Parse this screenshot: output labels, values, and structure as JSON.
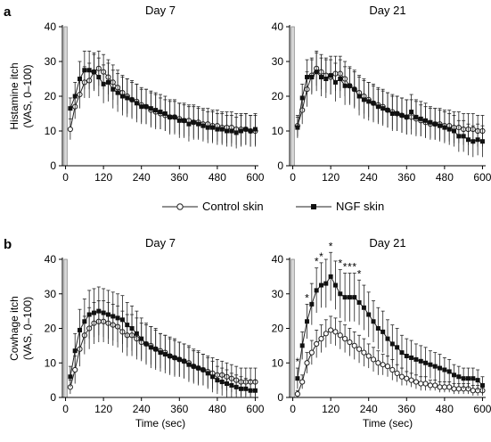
{
  "colors": {
    "axis": "#000000",
    "series_stroke": "#222222",
    "bar_fill": "#d9d9d9",
    "bar_stroke": "#888888",
    "open_fill": "#ffffff",
    "filled_fill": "#111111"
  },
  "legend": {
    "control_label": "Control skin",
    "ngf_label": "NGF skin",
    "control_marker": "open-circle",
    "ngf_marker": "filled-square",
    "placement": "between-rows-center"
  },
  "chart_data": [
    {
      "type": "line",
      "panel_letter": "a",
      "title": "Day 7",
      "xlabel": "",
      "ylabel_line1": "Histamine itch",
      "ylabel_line2": "(VAS, 0–100)",
      "xlim": [
        -10,
        610
      ],
      "ylim": [
        0,
        40
      ],
      "xticks": [
        0,
        120,
        240,
        360,
        480,
        600
      ],
      "yticks": [
        0,
        10,
        20,
        30,
        40
      ],
      "grid": false,
      "stimulus_bar": {
        "x_start": -5,
        "x_end": 5,
        "y_top": 40
      },
      "x": [
        15,
        30,
        45,
        60,
        75,
        90,
        105,
        120,
        135,
        150,
        165,
        180,
        195,
        210,
        225,
        240,
        255,
        270,
        285,
        300,
        315,
        330,
        345,
        360,
        375,
        390,
        405,
        420,
        435,
        450,
        465,
        480,
        495,
        510,
        525,
        540,
        555,
        570,
        585,
        600
      ],
      "series": [
        {
          "name": "Control skin",
          "marker": "open-circle",
          "values": [
            10.5,
            17,
            20.5,
            24,
            24.5,
            27,
            28,
            27,
            25.5,
            24,
            22.5,
            21,
            20,
            19,
            18.5,
            17.5,
            17,
            16,
            15.5,
            15,
            14.5,
            14,
            14,
            13.5,
            13,
            13,
            12.5,
            12.5,
            12,
            12,
            11.5,
            11.5,
            11,
            11,
            11,
            10.5,
            10.5,
            10.5,
            10,
            10
          ],
          "errors": [
            3,
            3.5,
            4,
            4.5,
            5,
            5,
            5,
            5,
            5,
            5,
            5,
            5,
            5,
            5,
            5,
            5,
            5,
            5,
            5,
            4.5,
            4.5,
            4.5,
            4.5,
            4.5,
            4.5,
            4.5,
            4.5,
            4.5,
            4.5,
            4.5,
            4.5,
            4.5,
            4.5,
            4.5,
            4.5,
            4.5,
            4.5,
            4.5,
            4.5,
            4.5
          ]
        },
        {
          "name": "NGF skin",
          "marker": "filled-square",
          "values": [
            16.5,
            20,
            25,
            27.5,
            27.5,
            27,
            25.5,
            23.5,
            24,
            22,
            21,
            20,
            19.5,
            19,
            18,
            17,
            17,
            16.5,
            16,
            15.5,
            15,
            14,
            14,
            13,
            13,
            12,
            12.5,
            12,
            11.5,
            11,
            11,
            10.5,
            10.5,
            10,
            10,
            9.5,
            10,
            10.5,
            10,
            10.5
          ],
          "errors": [
            3,
            4,
            5,
            5.5,
            5.5,
            5.5,
            5.5,
            5.5,
            5.5,
            5.5,
            5.5,
            5.5,
            5.5,
            5.5,
            5.5,
            5,
            5,
            5,
            5,
            5,
            5,
            5,
            5,
            5,
            5,
            5,
            5,
            4.5,
            4.5,
            4.5,
            4.5,
            4.5,
            4.5,
            4.5,
            4.5,
            4.5,
            4.5,
            4.5,
            4.5,
            4.5
          ]
        }
      ],
      "asterisks": []
    },
    {
      "type": "line",
      "panel_letter": "",
      "title": "Day 21",
      "xlabel": "",
      "ylabel_line1": "",
      "ylabel_line2": "",
      "xlim": [
        -10,
        610
      ],
      "ylim": [
        0,
        40
      ],
      "xticks": [
        0,
        120,
        240,
        360,
        480,
        600
      ],
      "yticks": [
        0,
        10,
        20,
        30,
        40
      ],
      "grid": false,
      "stimulus_bar": {
        "x_start": -5,
        "x_end": 5,
        "y_top": 40
      },
      "x": [
        15,
        30,
        45,
        60,
        75,
        90,
        105,
        120,
        135,
        150,
        165,
        180,
        195,
        210,
        225,
        240,
        255,
        270,
        285,
        300,
        315,
        330,
        345,
        360,
        375,
        390,
        405,
        420,
        435,
        450,
        465,
        480,
        495,
        510,
        525,
        540,
        555,
        570,
        585,
        600
      ],
      "series": [
        {
          "name": "Control skin",
          "marker": "open-circle",
          "values": [
            11.5,
            16,
            22,
            26,
            28,
            27,
            26,
            25.5,
            26.5,
            26.5,
            25,
            23,
            22,
            21,
            20,
            19,
            18,
            17.5,
            17,
            16,
            15.5,
            15,
            14.5,
            14,
            14,
            13.5,
            13,
            12.5,
            12,
            12,
            12,
            11.5,
            11.5,
            11,
            11,
            10.5,
            10.5,
            10.5,
            10,
            10
          ],
          "errors": [
            3,
            4,
            5,
            5,
            5,
            5,
            5,
            5,
            5,
            5,
            5,
            5,
            5,
            5,
            5,
            5,
            5,
            5,
            5,
            5,
            5,
            5,
            5,
            5,
            5,
            5,
            4.5,
            4.5,
            4.5,
            4.5,
            4.5,
            4.5,
            4.5,
            4.5,
            4.5,
            4.5,
            4.5,
            4.5,
            4.5,
            4.5
          ]
        },
        {
          "name": "NGF skin",
          "marker": "filled-square",
          "values": [
            11,
            19.5,
            25.5,
            25.5,
            27,
            25.5,
            25,
            26,
            24,
            25,
            23,
            23,
            22,
            20,
            19,
            18.5,
            18,
            17,
            16.5,
            16,
            15,
            15,
            14.5,
            14,
            15.5,
            14,
            13.5,
            13,
            12.5,
            12,
            11.5,
            11,
            10.5,
            10,
            8.5,
            8.5,
            7.5,
            7,
            7.5,
            7
          ],
          "errors": [
            3,
            4,
            5,
            5,
            5.5,
            5.5,
            5.5,
            5.5,
            5.5,
            5.5,
            5.5,
            5.5,
            5.5,
            5.5,
            5.5,
            5.5,
            5.5,
            5,
            5,
            5,
            5,
            5,
            5,
            5,
            5,
            5,
            5,
            5,
            4.5,
            4.5,
            4.5,
            4.5,
            4.5,
            4.5,
            4.5,
            4.5,
            4.5,
            4.5,
            4.5,
            4.5
          ]
        }
      ],
      "asterisks": []
    },
    {
      "type": "line",
      "panel_letter": "b",
      "title": "Day 7",
      "xlabel": "Time (sec)",
      "ylabel_line1": "Cowhage itch",
      "ylabel_line2": "(VAS, 0–100)",
      "xlim": [
        -10,
        610
      ],
      "ylim": [
        0,
        40
      ],
      "xticks": [
        0,
        120,
        240,
        360,
        480,
        600
      ],
      "yticks": [
        0,
        10,
        20,
        30,
        40
      ],
      "grid": false,
      "stimulus_bar": {
        "x_start": -5,
        "x_end": 5,
        "y_top": 40
      },
      "x": [
        15,
        30,
        45,
        60,
        75,
        90,
        105,
        120,
        135,
        150,
        165,
        180,
        195,
        210,
        225,
        240,
        255,
        270,
        285,
        300,
        315,
        330,
        345,
        360,
        375,
        390,
        405,
        420,
        435,
        450,
        465,
        480,
        495,
        510,
        525,
        540,
        555,
        570,
        585,
        600
      ],
      "series": [
        {
          "name": "Control skin",
          "marker": "open-circle",
          "values": [
            3,
            8,
            14,
            18,
            20,
            21.5,
            22,
            22,
            21.5,
            21,
            20.5,
            19,
            18,
            18,
            17,
            16,
            15.5,
            15,
            14,
            13.5,
            13,
            12,
            11.5,
            11,
            10.5,
            10,
            9,
            8.5,
            8,
            7.5,
            7,
            6.5,
            6.5,
            6,
            5.5,
            5,
            4.5,
            4.5,
            4.5,
            4.5
          ],
          "errors": [
            2,
            4,
            5,
            5.5,
            6,
            6,
            6,
            6,
            6,
            6,
            6,
            6,
            6,
            6,
            6,
            5.5,
            5.5,
            5.5,
            5.5,
            5,
            5,
            5,
            5,
            5,
            5,
            5,
            4.5,
            4.5,
            4.5,
            4.5,
            4.5,
            4.5,
            4,
            4,
            4,
            4,
            4,
            4,
            4,
            4
          ]
        },
        {
          "name": "NGF skin",
          "marker": "filled-square",
          "values": [
            6,
            13.5,
            19.5,
            22,
            24,
            24.5,
            25,
            24.5,
            24,
            23.5,
            23,
            22.5,
            21,
            20,
            18.5,
            17,
            15.5,
            14.5,
            14,
            13,
            12.5,
            12,
            11.5,
            11,
            10.5,
            9.5,
            9,
            8.5,
            8,
            7,
            6,
            5,
            4.5,
            4,
            3.5,
            3,
            2.5,
            2.5,
            2,
            2
          ],
          "errors": [
            3,
            5,
            6,
            6.5,
            7,
            7,
            7,
            7,
            7,
            7,
            7,
            7,
            6.5,
            6.5,
            6.5,
            6,
            6,
            6,
            6,
            5.5,
            5.5,
            5.5,
            5.5,
            5,
            5,
            5,
            5,
            5,
            4.5,
            4.5,
            4.5,
            4,
            4,
            4,
            3.5,
            3.5,
            3.5,
            3,
            3,
            3
          ]
        }
      ],
      "asterisks": []
    },
    {
      "type": "line",
      "panel_letter": "",
      "title": "Day 21",
      "xlabel": "Time (sec)",
      "ylabel_line1": "",
      "ylabel_line2": "",
      "xlim": [
        -10,
        610
      ],
      "ylim": [
        0,
        40
      ],
      "xticks": [
        0,
        120,
        240,
        360,
        480,
        600
      ],
      "yticks": [
        0,
        10,
        20,
        30,
        40
      ],
      "grid": false,
      "stimulus_bar": {
        "x_start": -5,
        "x_end": 5,
        "y_top": 40
      },
      "x": [
        15,
        30,
        45,
        60,
        75,
        90,
        105,
        120,
        135,
        150,
        165,
        180,
        195,
        210,
        225,
        240,
        255,
        270,
        285,
        300,
        315,
        330,
        345,
        360,
        375,
        390,
        405,
        420,
        435,
        450,
        465,
        480,
        495,
        510,
        525,
        540,
        555,
        570,
        585,
        600
      ],
      "series": [
        {
          "name": "Control skin",
          "marker": "open-circle",
          "values": [
            1,
            4.5,
            10,
            13,
            15.5,
            17,
            18.5,
            19.5,
            19,
            18,
            17,
            16,
            15,
            14,
            13,
            12,
            11,
            10,
            9.5,
            9,
            8,
            7,
            6,
            5.5,
            5,
            4.5,
            4,
            4,
            3.5,
            3.5,
            3,
            3,
            3,
            2.5,
            2.5,
            2.5,
            2.5,
            2,
            2,
            2
          ],
          "errors": [
            1,
            2,
            3,
            3.5,
            4,
            4,
            4,
            4,
            4,
            4,
            4,
            4,
            4,
            4,
            4,
            3.5,
            3.5,
            3.5,
            3,
            3,
            3,
            2.5,
            2.5,
            2,
            2,
            2,
            2,
            2,
            1.5,
            1.5,
            1.5,
            1.5,
            1.5,
            1.5,
            1.5,
            1.5,
            1.5,
            1.5,
            1.5,
            1.5
          ]
        },
        {
          "name": "NGF skin",
          "marker": "filled-square",
          "values": [
            5.5,
            15,
            22,
            27,
            31,
            32.5,
            33,
            35,
            32.5,
            30,
            29,
            29,
            29,
            27.5,
            26,
            24,
            22,
            20,
            19,
            17,
            15.5,
            14.5,
            13,
            12,
            11.5,
            11,
            10.5,
            10,
            9.5,
            9,
            8.5,
            8,
            7.5,
            6.5,
            6,
            5.5,
            5.5,
            5.5,
            5,
            3.5
          ],
          "errors": [
            3,
            4,
            5,
            6,
            6.5,
            6.5,
            7,
            7,
            7,
            7,
            7,
            7,
            7,
            6.5,
            6.5,
            6.5,
            6,
            6,
            6,
            5.5,
            5.5,
            5.5,
            5,
            5,
            5,
            4.5,
            4.5,
            4.5,
            4,
            4,
            4,
            3.5,
            3.5,
            3,
            3,
            3,
            3,
            3,
            3,
            2.5
          ]
        }
      ],
      "asterisks": [
        {
          "x": 15,
          "label": "*"
        },
        {
          "x": 45,
          "label": "*"
        },
        {
          "x": 75,
          "label": "*"
        },
        {
          "x": 90,
          "label": "*"
        },
        {
          "x": 120,
          "label": "*"
        },
        {
          "x": 150,
          "label": "*"
        },
        {
          "x": 165,
          "label": "*"
        },
        {
          "x": 180,
          "label": "*"
        },
        {
          "x": 195,
          "label": "*"
        },
        {
          "x": 210,
          "label": "*"
        }
      ]
    }
  ]
}
